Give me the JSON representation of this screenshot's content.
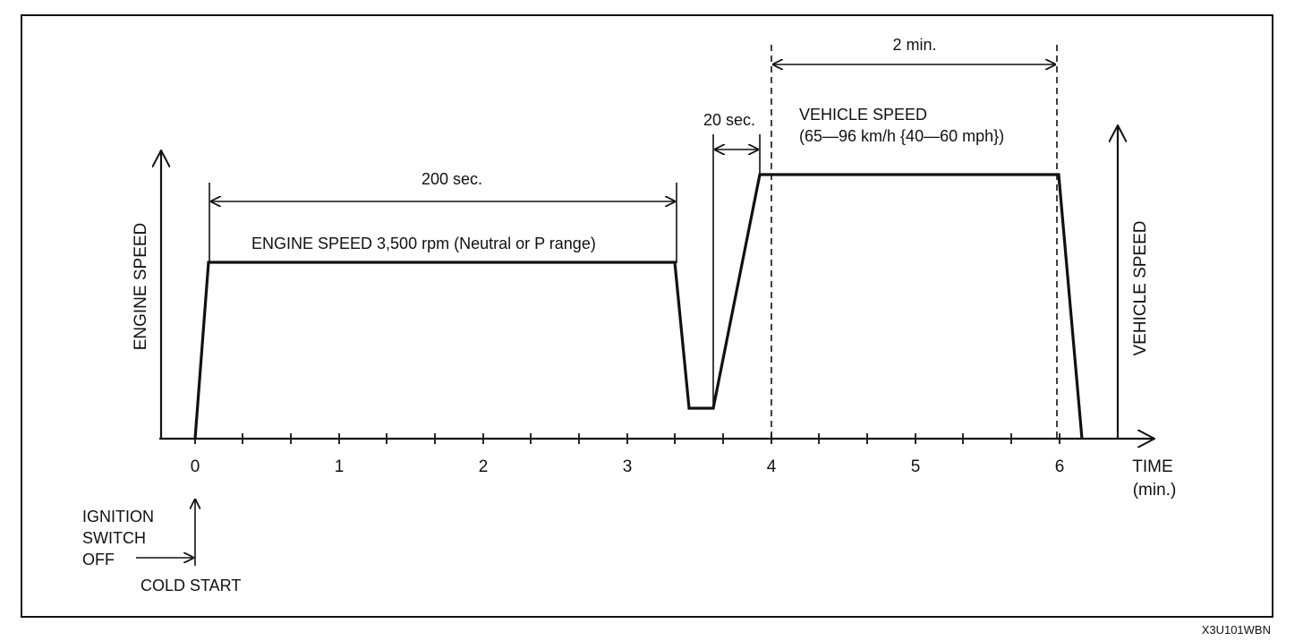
{
  "diagram": {
    "segments": {
      "engine_duration": "200 sec.",
      "shift_duration": "20 sec.",
      "vehicle_duration": "2 min."
    },
    "labels": {
      "engine_speed_setting": "ENGINE SPEED 3,500 rpm (Neutral or P range)",
      "vehicle_speed_title": "VEHICLE SPEED",
      "vehicle_speed_range": "(65—96 km/h {40—60 mph})",
      "ignition_line1": "IGNITION",
      "ignition_line2": "SWITCH",
      "ignition_line3": "OFF",
      "cold_start": "COLD START"
    },
    "axes": {
      "left_axis": "ENGINE SPEED",
      "right_axis": "VEHICLE SPEED",
      "time_label": "TIME",
      "time_unit": "(min.)",
      "ticks": [
        "0",
        "1",
        "2",
        "3",
        "4",
        "5",
        "6"
      ]
    },
    "figure_code": "X3U101WBN"
  }
}
